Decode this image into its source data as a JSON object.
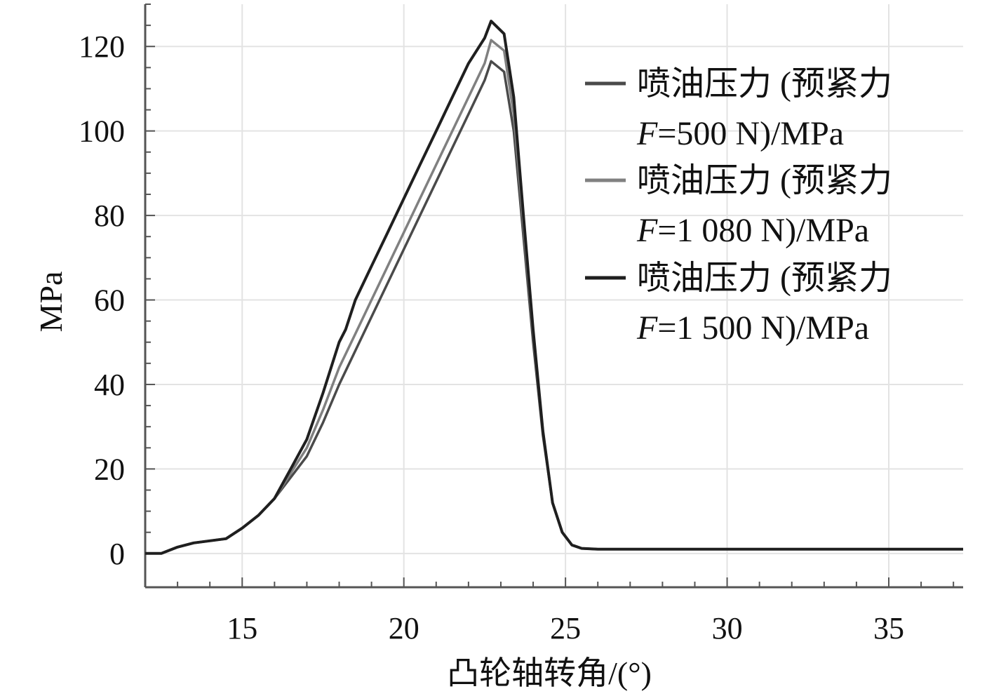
{
  "chart_data": {
    "type": "line",
    "title": "",
    "xlabel": "凸轮轴转角/(°)",
    "ylabel": "MPa",
    "xlim": [
      12,
      37.3
    ],
    "ylim": [
      -8,
      130
    ],
    "xticks": [
      15,
      20,
      25,
      30,
      35
    ],
    "yticks": [
      0,
      20,
      40,
      60,
      80,
      100,
      120
    ],
    "grid": true,
    "legend_position": "top-right",
    "series": [
      {
        "name": "喷油压力 (预紧力 F=500 N)/MPa",
        "legend_line1": "喷油压力 (预紧力",
        "legend_var": "F",
        "legend_rest": "=500 N)/MPa",
        "color": "#4a4a4a",
        "x": [
          12,
          12.5,
          13,
          13.5,
          14,
          14.5,
          15,
          15.5,
          16,
          16.5,
          17,
          17.5,
          18,
          18.5,
          19,
          19.5,
          20,
          20.5,
          21,
          21.5,
          22,
          22.5,
          22.7,
          23.1,
          23.4,
          23.7,
          24,
          24.3,
          24.6,
          24.9,
          25.2,
          25.5,
          26,
          27,
          28,
          30,
          37.3
        ],
        "y": [
          0,
          0,
          1.5,
          2.5,
          3,
          3.5,
          6,
          9,
          13,
          18,
          23,
          31,
          40,
          48,
          56,
          64,
          72,
          80,
          88,
          96,
          104,
          112,
          116.5,
          114,
          100,
          75,
          50,
          28,
          12,
          5,
          2,
          1.2,
          1,
          1,
          1,
          1,
          1
        ]
      },
      {
        "name": "喷油压力 (预紧力 F=1 080 N)/MPa",
        "legend_line1": "喷油压力 (预紧力",
        "legend_var": "F",
        "legend_rest": "=1 080 N)/MPa",
        "color": "#808080",
        "x": [
          12,
          12.5,
          13,
          13.5,
          14,
          14.5,
          15,
          15.5,
          16,
          16.5,
          17,
          17.5,
          18,
          18.5,
          19,
          19.5,
          20,
          20.5,
          21,
          21.5,
          22,
          22.5,
          22.7,
          23.1,
          23.4,
          23.7,
          24,
          24.3,
          24.6,
          24.9,
          25.2,
          25.5,
          26,
          27,
          28,
          30,
          37.3
        ],
        "y": [
          0,
          0,
          1.5,
          2.5,
          3,
          3.5,
          6,
          9,
          13,
          19,
          25,
          34,
          44,
          52,
          60,
          68,
          76,
          84,
          92,
          100,
          108,
          116,
          121.5,
          119,
          104,
          78,
          52,
          29,
          12,
          5,
          2,
          1.2,
          1,
          1,
          1,
          1,
          1
        ]
      },
      {
        "name": "喷油压力 (预紧力 F=1 500 N)/MPa",
        "legend_line1": "喷油压力 (预紧力",
        "legend_var": "F",
        "legend_rest": "=1 500 N)/MPa",
        "color": "#1f1f1f",
        "x": [
          12,
          12.5,
          13,
          13.5,
          14,
          14.5,
          15,
          15.5,
          16,
          16.5,
          17,
          17.5,
          18,
          18.2,
          18.5,
          19,
          19.5,
          20,
          20.5,
          21,
          21.5,
          22,
          22.5,
          22.7,
          23.1,
          23.4,
          23.7,
          24,
          24.3,
          24.6,
          24.9,
          25.2,
          25.5,
          26,
          27,
          28,
          30,
          37.3
        ],
        "y": [
          0,
          0,
          1.5,
          2.5,
          3,
          3.5,
          6,
          9,
          13,
          20,
          27,
          38,
          50,
          53,
          60,
          68,
          76,
          84,
          92,
          100,
          108,
          116,
          122,
          126,
          123,
          108,
          80,
          53,
          29,
          12,
          5,
          2,
          1.2,
          1,
          1,
          1,
          1,
          1
        ]
      }
    ]
  }
}
